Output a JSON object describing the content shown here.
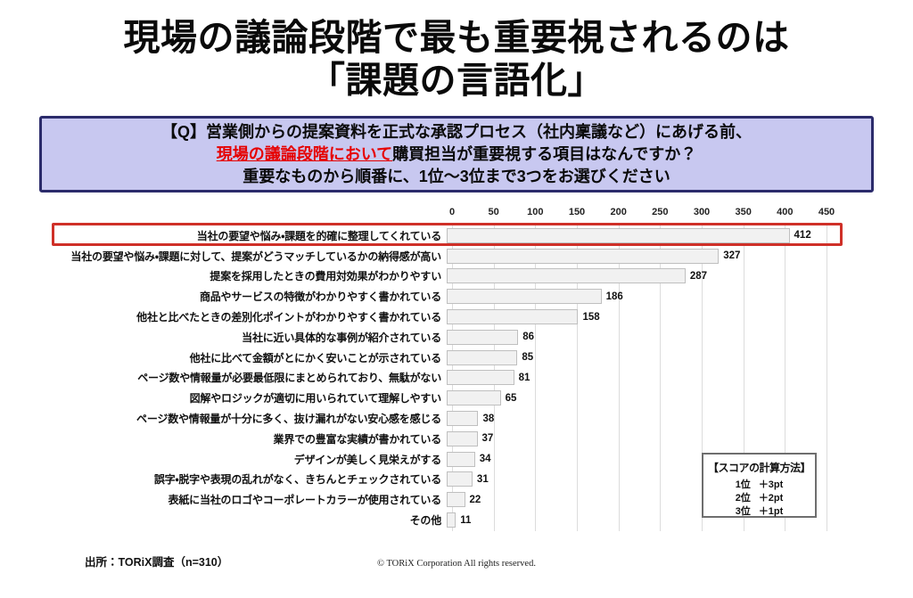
{
  "title": {
    "line1": "現場の議論段階で最も重要視されるのは",
    "line2": "「課題の言語化」"
  },
  "question_box": {
    "line1": "【Q】営業側からの提案資料を正式な承認プロセス（社内稟議など）にあげる前、",
    "line2_highlight": "現場の議論段階において",
    "line2_rest": "購買担当が重要視する項目はなんですか？",
    "line3": "重要なものから順番に、1位～3位まで3つをお選びください",
    "background": "#c8c8f0",
    "border_color": "#2b2b6b",
    "highlight_text_color": "#e60000"
  },
  "chart_data": {
    "type": "bar",
    "orientation": "horizontal",
    "categories": [
      "当社の要望や悩み・課題を的確に整理してくれている",
      "当社の要望や悩み・課題に対して、提案がどうマッチしているかの納得感が高い",
      "提案を採用したときの費用対効果がわかりやすい",
      "商品やサービスの特徴がわかりやすく書かれている",
      "他社と比べたときの差別化ポイントがわかりやすく書かれている",
      "当社に近い具体的な事例が紹介されている",
      "他社に比べて金額がとにかく安いことが示されている",
      "ページ数や情報量が必要最低限にまとめられており、無駄がない",
      "図解やロジックが適切に用いられていて理解しやすい",
      "ページ数や情報量が十分に多く、抜け漏れがない安心感を感じる",
      "業界での豊富な実績が書かれている",
      "デザインが美しく見栄えがする",
      "誤字・脱字や表現の乱れがなく、きちんとチェックされている",
      "表紙に当社のロゴやコーポレートカラーが使用されている",
      "その他"
    ],
    "values": [
      412,
      327,
      287,
      186,
      158,
      86,
      85,
      81,
      65,
      38,
      37,
      34,
      31,
      22,
      11
    ],
    "x_ticks": [
      0,
      50,
      100,
      150,
      200,
      250,
      300,
      350,
      400,
      450
    ],
    "xlim": [
      0,
      450
    ],
    "grid": true,
    "highlighted_index": 0,
    "highlight_border_color": "#cf3028",
    "bar_fill": "#f1f1f1",
    "bar_border": "#bfbfbf",
    "gridline_color": "#dcdcdc"
  },
  "score_box": {
    "title": "【スコアの計算方法】",
    "items": [
      {
        "rank": "1位",
        "points": "＋3pt"
      },
      {
        "rank": "2位",
        "points": "＋2pt"
      },
      {
        "rank": "3位",
        "points": "＋1pt"
      }
    ]
  },
  "footer": {
    "source": "出所：TORiX調査（n=310）",
    "copyright": "© TORiX Corporation All rights reserved."
  }
}
